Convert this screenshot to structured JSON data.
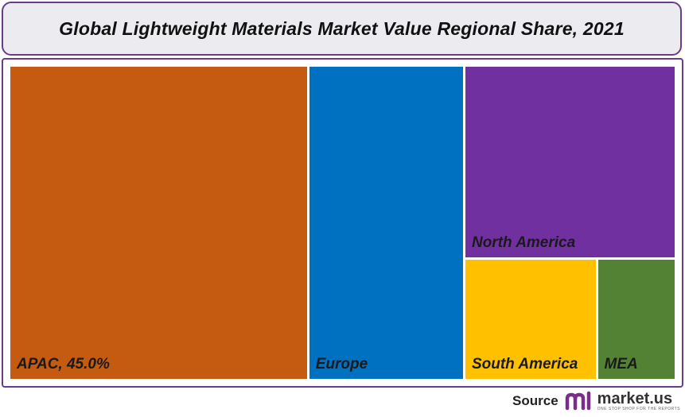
{
  "header": {
    "title": "Global Lightweight Materials Market Value Regional Share, 2021"
  },
  "chart_data": {
    "type": "treemap",
    "title": "Global Lightweight Materials Market Value Regional Share, 2021",
    "items": [
      {
        "label": "APAC, 45.0%",
        "name": "APAC",
        "value": 45.0,
        "color": "#c55a11"
      },
      {
        "label": "Europe",
        "name": "Europe",
        "value": 23.5,
        "color": "#0070c0"
      },
      {
        "label": "North America",
        "name": "North America",
        "value": 19.5,
        "color": "#7030a0"
      },
      {
        "label": "South America",
        "name": "South America",
        "value": 7.6,
        "color": "#ffc000"
      },
      {
        "label": "MEA",
        "name": "MEA",
        "value": 4.4,
        "color": "#548235"
      }
    ]
  },
  "footer": {
    "source_label": "Source",
    "brand_name": "market.us",
    "brand_tagline": "ONE STOP SHOP FOR THE REPORTS",
    "brand_icon": "market-us-logo-icon",
    "brand_color": "#7b2d8e"
  }
}
